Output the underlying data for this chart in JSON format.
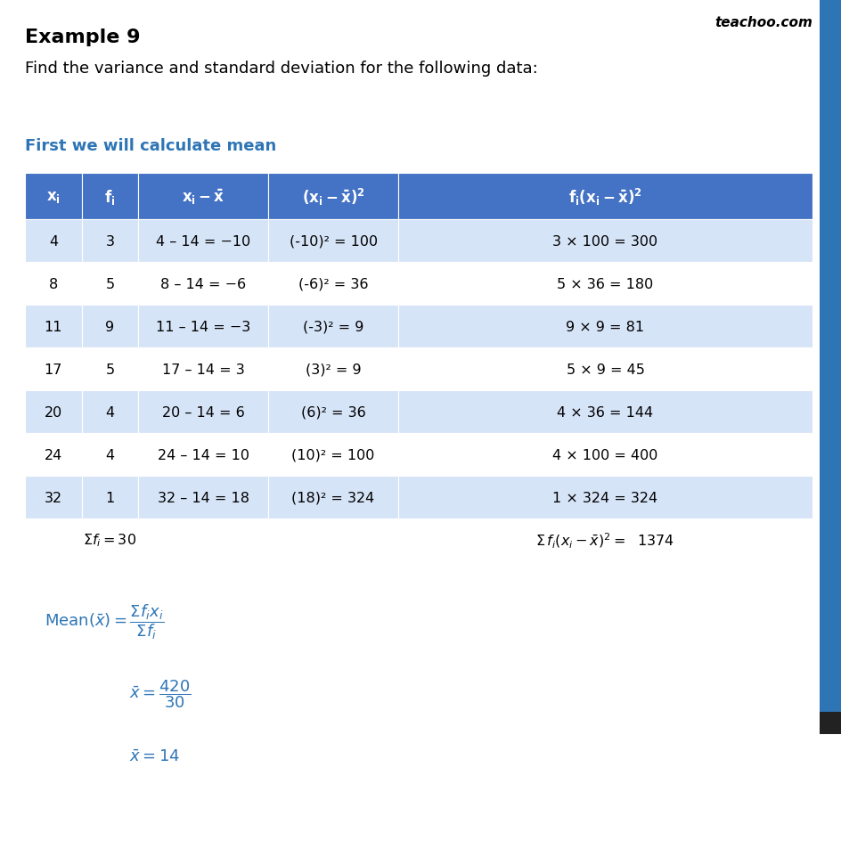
{
  "title": "Example 9",
  "watermark": "teachoo.com",
  "subtitle": "Find the variance and standard deviation for the following data:",
  "section_header": "First we will calculate mean",
  "header_bg": "#4472C4",
  "header_text": "#FFFFFF",
  "row_bg_even": "#FFFFFF",
  "row_bg_odd": "#D6E4F7",
  "summary_bg": "#FFFFFF",
  "blue_text": "#2E75B6",
  "section_color": "#2E75B6",
  "right_bar_color": "#2E75B6",
  "background_color": "#FFFFFF",
  "rows": [
    [
      "4",
      "3",
      "4 – 14 = −10",
      "(-10)² = 100",
      "3 × 100 = 300"
    ],
    [
      "8",
      "5",
      "8 – 14 = −6",
      "(-6)² = 36",
      "5 × 36 = 180"
    ],
    [
      "11",
      "9",
      "11 – 14 = −3",
      "(-3)² = 9",
      "9 × 9 = 81"
    ],
    [
      "17",
      "5",
      "17 – 14 = 3",
      "(3)² = 9",
      "5 × 9 = 45"
    ],
    [
      "20",
      "4",
      "20 – 14 = 6",
      "(6)² = 36",
      "4 × 36 = 144"
    ],
    [
      "24",
      "4",
      "24 – 14 = 10",
      "(10)² = 100",
      "4 × 100 = 400"
    ],
    [
      "32",
      "1",
      "32 – 14 = 18",
      "(18)² = 324",
      "1 × 324 = 324"
    ]
  ]
}
